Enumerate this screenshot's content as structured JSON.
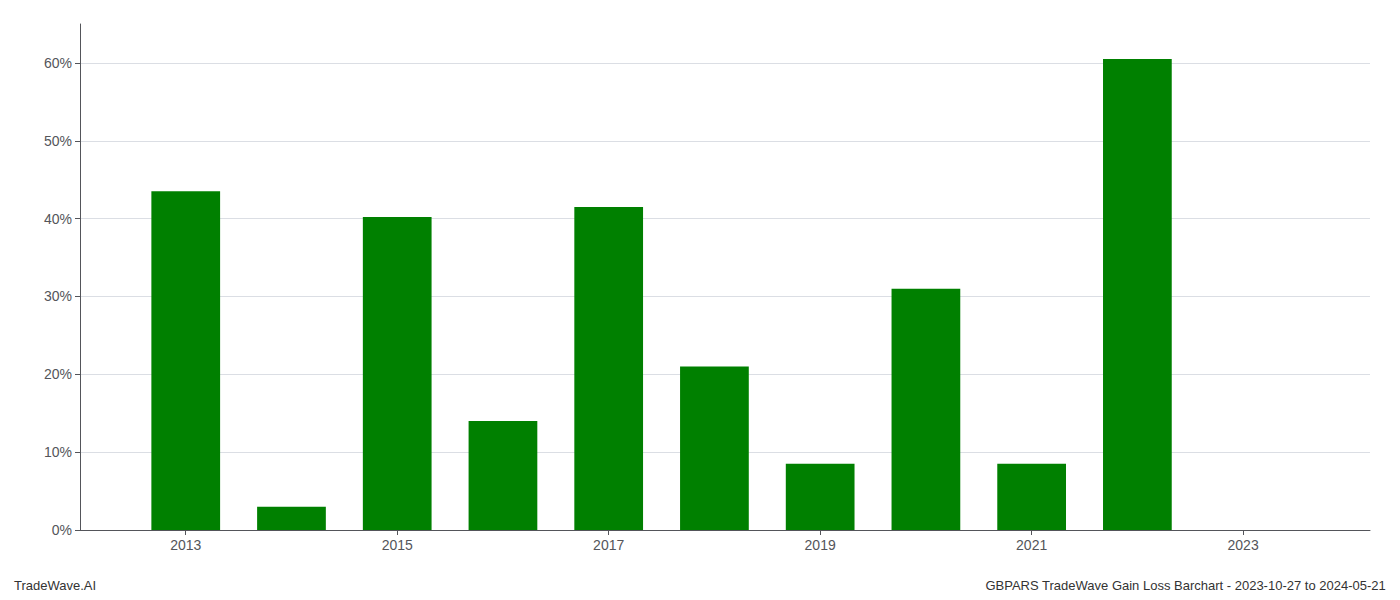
{
  "chart_data": {
    "type": "bar",
    "x": [
      2013,
      2014,
      2015,
      2016,
      2017,
      2018,
      2019,
      2020,
      2021,
      2022,
      2023
    ],
    "values": [
      43.5,
      3.0,
      40.2,
      14.0,
      41.5,
      21.0,
      8.5,
      31.0,
      8.5,
      60.5,
      null
    ],
    "color": "#008000",
    "xlim": [
      2012.0,
      2024.2
    ],
    "xticks": [
      2013,
      2015,
      2017,
      2019,
      2021,
      2023
    ],
    "ylim": [
      0,
      65
    ],
    "yticks": [
      {
        "value": 0,
        "label": "0%"
      },
      {
        "value": 10,
        "label": "10%"
      },
      {
        "value": 20,
        "label": "20%"
      },
      {
        "value": 30,
        "label": "30%"
      },
      {
        "value": 40,
        "label": "40%"
      },
      {
        "value": 50,
        "label": "50%"
      },
      {
        "value": 60,
        "label": "60%"
      }
    ],
    "grid": true,
    "annotations": [
      "TradeWave.AI",
      "GBPARS TradeWave Gain Loss Barchart - 2023-10-27 to 2024-05-21"
    ]
  }
}
